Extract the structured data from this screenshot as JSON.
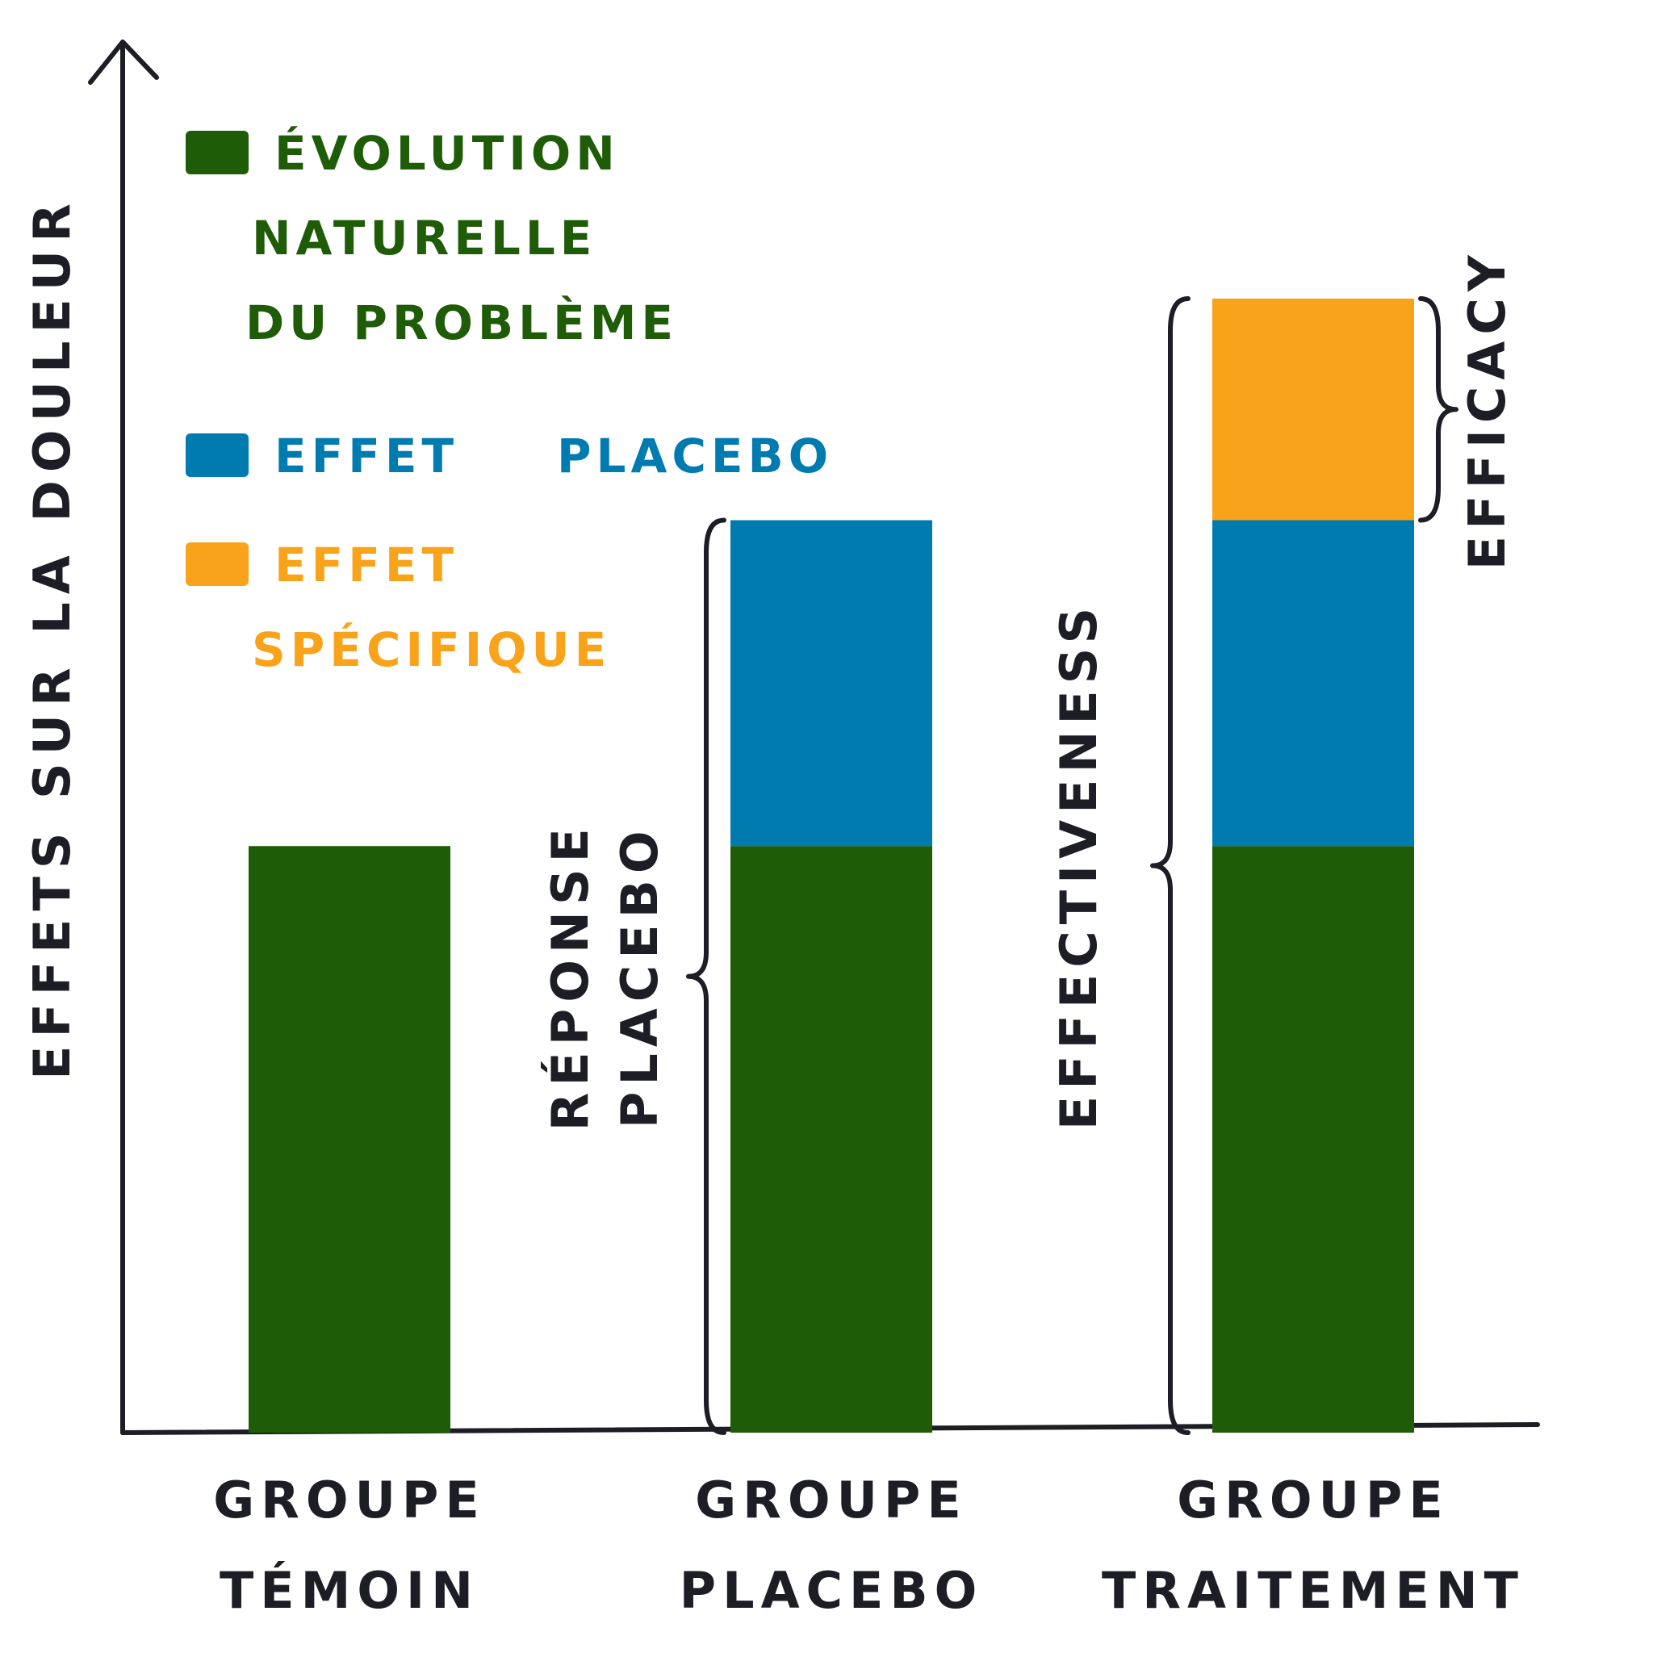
{
  "chart_data": {
    "type": "bar",
    "stacked": true,
    "ylabel": "EFFETS SUR LA DOULEUR",
    "xlabel": "",
    "categories": [
      [
        "GROUPE",
        "TÉMOIN"
      ],
      [
        "GROUPE",
        "PLACEBO"
      ],
      [
        "GROUPE",
        "TRAITEMENT"
      ]
    ],
    "ylim": [
      0,
      100
    ],
    "series": [
      {
        "name": [
          "ÉVOLUTION",
          "NATURELLE",
          "DU PROBLÈME"
        ],
        "color": "#1f5c07",
        "values": [
          45,
          45,
          45
        ]
      },
      {
        "name": [
          "EFFET",
          "PLACEBO"
        ],
        "color": "#007bb0",
        "values": [
          0,
          25,
          25
        ]
      },
      {
        "name": [
          "EFFET",
          "SPÉCIFIQUE"
        ],
        "color": "#f9a31b",
        "values": [
          0,
          0,
          17
        ]
      }
    ],
    "annotations": [
      {
        "label": [
          "RÉPONSE",
          "PLACEBO"
        ],
        "category": 1,
        "from": 0,
        "to": 70,
        "side": "left"
      },
      {
        "label": [
          "EFFECTIVENESS"
        ],
        "category": 2,
        "from": 0,
        "to": 87,
        "side": "left"
      },
      {
        "label": [
          "EFFICACY"
        ],
        "category": 2,
        "from": 70,
        "to": 87,
        "side": "right"
      }
    ],
    "legend": "top-left",
    "grid": false
  }
}
